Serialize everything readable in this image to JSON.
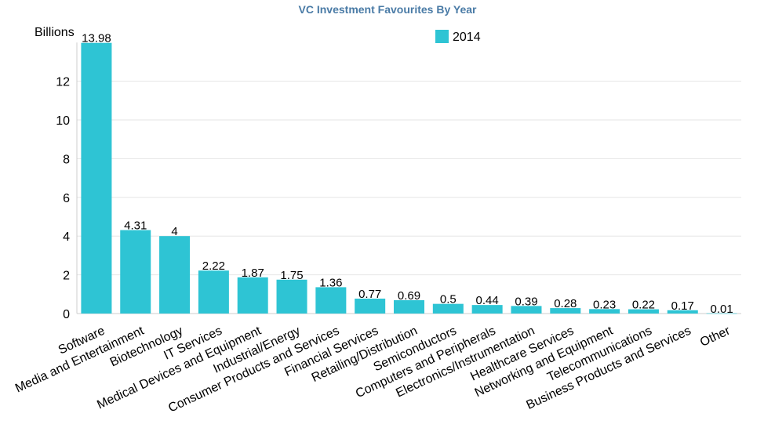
{
  "chart_data": {
    "type": "bar",
    "title": "VC Investment Favourites By Year",
    "ylabel": "Billions",
    "xlabel": "",
    "ylim": [
      0,
      14
    ],
    "yticks": [
      0,
      2,
      4,
      6,
      8,
      10,
      12
    ],
    "grid": true,
    "legend_position": "top-center",
    "categories": [
      "Software",
      "Media and Entertainment",
      "Biotechnology",
      "IT Services",
      "Medical Devices and Equipment",
      "Industrial/Energy",
      "Consumer Products and Services",
      "Financial Services",
      "Retailing/Distribution",
      "Semiconductors",
      "Computers and Peripherals",
      "Electronics/Instrumentation",
      "Healthcare Services",
      "Networking and Equipment",
      "Telecommunications",
      "Business Products and Services",
      "Other"
    ],
    "series": [
      {
        "name": "2014",
        "color": "#2ec4d4",
        "values": [
          13.98,
          4.31,
          4,
          2.22,
          1.87,
          1.75,
          1.36,
          0.77,
          0.69,
          0.5,
          0.44,
          0.39,
          0.28,
          0.23,
          0.22,
          0.17,
          0.01
        ]
      }
    ]
  }
}
